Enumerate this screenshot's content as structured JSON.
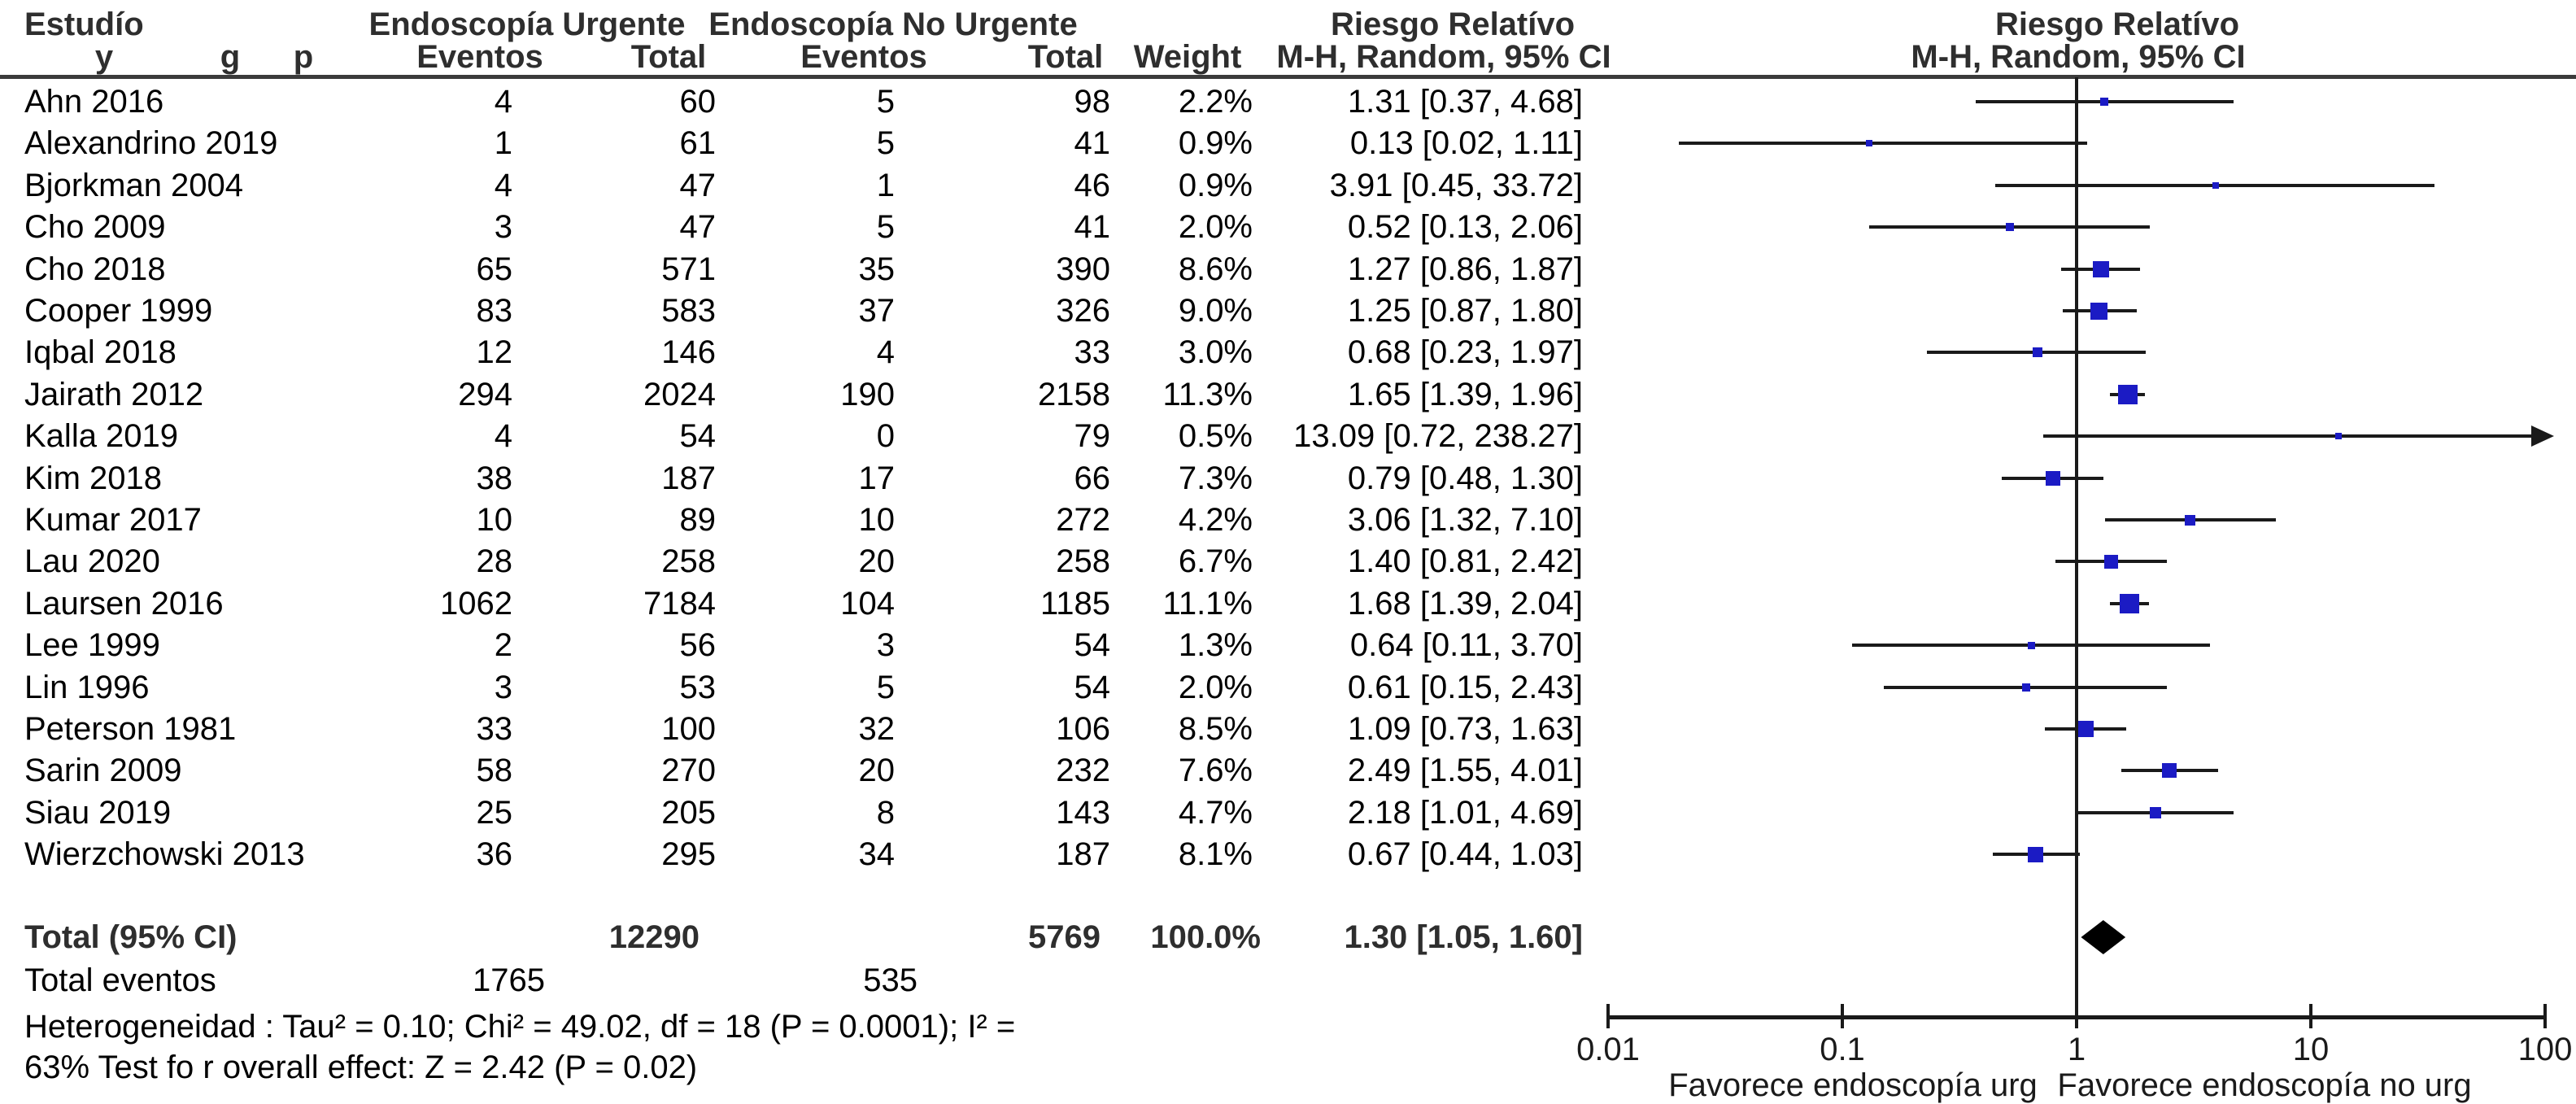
{
  "header": {
    "study": "Estudío",
    "sub_letters": [
      "y",
      "g",
      "p"
    ],
    "group_urgent": "Endoscopía Urgente",
    "group_nonurgent": "Endoscopía No Urgente",
    "events": "Eventos",
    "total": "Total",
    "weight": "Weight",
    "rr": "Riesgo Relatívo",
    "mh": "M-H, Random, 95% CI"
  },
  "chart_data": {
    "type": "forest",
    "effect_measure": "Riesgo Relatívo",
    "method": "M-H, Random, 95% CI",
    "x_axis": {
      "scale": "log10",
      "min": 0.01,
      "max": 100,
      "ticks": [
        0.01,
        0.1,
        1,
        10,
        100
      ],
      "tick_labels": [
        "0.01",
        "0.1",
        "1",
        "10",
        "100"
      ]
    },
    "favor_left": "Favorece endoscopía urg",
    "favor_right": "Favorece endoscopía no urg",
    "studies": [
      {
        "name": "Ahn 2016",
        "events_urgent": "4",
        "total_urgent": "60",
        "events_nonurgent": "5",
        "total_nonurgent": "98",
        "weight": "2.2%",
        "weight_pct": 2.2,
        "rr": 1.31,
        "ci_low": 0.37,
        "ci_high": 4.68,
        "rr_text": "1.31 [0.37, 4.68]"
      },
      {
        "name": "Alexandrino 2019",
        "events_urgent": "1",
        "total_urgent": "61",
        "events_nonurgent": "5",
        "total_nonurgent": "41",
        "weight": "0.9%",
        "weight_pct": 0.9,
        "rr": 0.13,
        "ci_low": 0.02,
        "ci_high": 1.11,
        "rr_text": "0.13 [0.02, 1.11]"
      },
      {
        "name": "Bjorkman 2004",
        "events_urgent": "4",
        "total_urgent": "47",
        "events_nonurgent": "1",
        "total_nonurgent": "46",
        "weight": "0.9%",
        "weight_pct": 0.9,
        "rr": 3.91,
        "ci_low": 0.45,
        "ci_high": 33.72,
        "rr_text": "3.91 [0.45, 33.72]"
      },
      {
        "name": "Cho 2009",
        "events_urgent": "3",
        "total_urgent": "47",
        "events_nonurgent": "5",
        "total_nonurgent": "41",
        "weight": "2.0%",
        "weight_pct": 2.0,
        "rr": 0.52,
        "ci_low": 0.13,
        "ci_high": 2.06,
        "rr_text": "0.52 [0.13, 2.06]"
      },
      {
        "name": "Cho 2018",
        "events_urgent": "65",
        "total_urgent": "571",
        "events_nonurgent": "35",
        "total_nonurgent": "390",
        "weight": "8.6%",
        "weight_pct": 8.6,
        "rr": 1.27,
        "ci_low": 0.86,
        "ci_high": 1.87,
        "rr_text": "1.27 [0.86, 1.87]"
      },
      {
        "name": "Cooper 1999",
        "events_urgent": "83",
        "total_urgent": "583",
        "events_nonurgent": "37",
        "total_nonurgent": "326",
        "weight": "9.0%",
        "weight_pct": 9.0,
        "rr": 1.25,
        "ci_low": 0.87,
        "ci_high": 1.8,
        "rr_text": "1.25 [0.87, 1.80]"
      },
      {
        "name": "Iqbal 2018",
        "events_urgent": "12",
        "total_urgent": "146",
        "events_nonurgent": "4",
        "total_nonurgent": "33",
        "weight": "3.0%",
        "weight_pct": 3.0,
        "rr": 0.68,
        "ci_low": 0.23,
        "ci_high": 1.97,
        "rr_text": "0.68 [0.23, 1.97]"
      },
      {
        "name": "Jairath 2012",
        "events_urgent": "294",
        "total_urgent": "2024",
        "events_nonurgent": "190",
        "total_nonurgent": "2158",
        "weight": "11.3%",
        "weight_pct": 11.3,
        "rr": 1.65,
        "ci_low": 1.39,
        "ci_high": 1.96,
        "rr_text": "1.65 [1.39, 1.96]"
      },
      {
        "name": "Kalla 2019",
        "events_urgent": "4",
        "total_urgent": "54",
        "events_nonurgent": "0",
        "total_nonurgent": "79",
        "weight": "0.5%",
        "weight_pct": 0.5,
        "rr": 13.09,
        "ci_low": 0.72,
        "ci_high": 238.27,
        "rr_text": "13.09 [0.72, 238.27]"
      },
      {
        "name": "Kim 2018",
        "events_urgent": "38",
        "total_urgent": "187",
        "events_nonurgent": "17",
        "total_nonurgent": "66",
        "weight": "7.3%",
        "weight_pct": 7.3,
        "rr": 0.79,
        "ci_low": 0.48,
        "ci_high": 1.3,
        "rr_text": "0.79 [0.48, 1.30]"
      },
      {
        "name": "Kumar 2017",
        "events_urgent": "10",
        "total_urgent": "89",
        "events_nonurgent": "10",
        "total_nonurgent": "272",
        "weight": "4.2%",
        "weight_pct": 4.2,
        "rr": 3.06,
        "ci_low": 1.32,
        "ci_high": 7.1,
        "rr_text": "3.06 [1.32, 7.10]"
      },
      {
        "name": "Lau 2020",
        "events_urgent": "28",
        "total_urgent": "258",
        "events_nonurgent": "20",
        "total_nonurgent": "258",
        "weight": "6.7%",
        "weight_pct": 6.7,
        "rr": 1.4,
        "ci_low": 0.81,
        "ci_high": 2.42,
        "rr_text": "1.40 [0.81, 2.42]"
      },
      {
        "name": "Laursen 2016",
        "events_urgent": "1062",
        "total_urgent": "7184",
        "events_nonurgent": "104",
        "total_nonurgent": "1185",
        "weight": "11.1%",
        "weight_pct": 11.1,
        "rr": 1.68,
        "ci_low": 1.39,
        "ci_high": 2.04,
        "rr_text": "1.68 [1.39, 2.04]"
      },
      {
        "name": "Lee 1999",
        "events_urgent": "2",
        "total_urgent": "56",
        "events_nonurgent": "3",
        "total_nonurgent": "54",
        "weight": "1.3%",
        "weight_pct": 1.3,
        "rr": 0.64,
        "ci_low": 0.11,
        "ci_high": 3.7,
        "rr_text": "0.64 [0.11, 3.70]"
      },
      {
        "name": "Lin 1996",
        "events_urgent": "3",
        "total_urgent": "53",
        "events_nonurgent": "5",
        "total_nonurgent": "54",
        "weight": "2.0%",
        "weight_pct": 2.0,
        "rr": 0.61,
        "ci_low": 0.15,
        "ci_high": 2.43,
        "rr_text": "0.61 [0.15, 2.43]"
      },
      {
        "name": "Peterson 1981",
        "events_urgent": "33",
        "total_urgent": "100",
        "events_nonurgent": "32",
        "total_nonurgent": "106",
        "weight": "8.5%",
        "weight_pct": 8.5,
        "rr": 1.09,
        "ci_low": 0.73,
        "ci_high": 1.63,
        "rr_text": "1.09 [0.73, 1.63]"
      },
      {
        "name": "Sarin 2009",
        "events_urgent": "58",
        "total_urgent": "270",
        "events_nonurgent": "20",
        "total_nonurgent": "232",
        "weight": "7.6%",
        "weight_pct": 7.6,
        "rr": 2.49,
        "ci_low": 1.55,
        "ci_high": 4.01,
        "rr_text": "2.49 [1.55, 4.01]"
      },
      {
        "name": "Siau 2019",
        "events_urgent": "25",
        "total_urgent": "205",
        "events_nonurgent": "8",
        "total_nonurgent": "143",
        "weight": "4.7%",
        "weight_pct": 4.7,
        "rr": 2.18,
        "ci_low": 1.01,
        "ci_high": 4.69,
        "rr_text": "2.18 [1.01, 4.69]"
      },
      {
        "name": "Wierzchowski 2013",
        "events_urgent": "36",
        "total_urgent": "295",
        "events_nonurgent": "34",
        "total_nonurgent": "187",
        "weight": "8.1%",
        "weight_pct": 8.1,
        "rr": 0.67,
        "ci_low": 0.44,
        "ci_high": 1.03,
        "rr_text": "0.67 [0.44, 1.03]"
      }
    ],
    "total": {
      "label": "Total (95% CI)",
      "total_urgent": "12290",
      "total_nonurgent": "5769",
      "weight": "100.0%",
      "rr": 1.3,
      "ci_low": 1.05,
      "ci_high": 1.6,
      "rr_text": "1.30 [1.05, 1.60]"
    },
    "total_events": {
      "label": "Total eventos",
      "urgent": "1765",
      "nonurgent": "535"
    },
    "footnotes": [
      "Heterogeneidad : Tau² = 0.10; Chi² = 49.02, df  = 18 (P = 0.0001); I² =",
      "63% Test fo r overall effect: Z = 2.42 (P = 0.02)"
    ],
    "colors": {
      "square": "#1b1bc4",
      "line": "#1a1a1a",
      "diamond": "#000000",
      "header_rule": "#3b3b3b"
    }
  }
}
